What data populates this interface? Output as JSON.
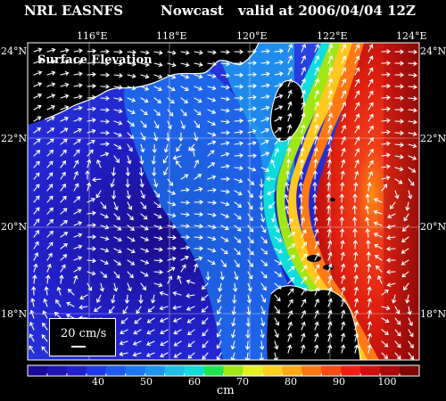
{
  "header": {
    "org": "NRL EASNFS",
    "product": "Nowcast",
    "valid": "valid at 2006/04/04 12Z"
  },
  "map": {
    "field_title": "Surface Elevation",
    "lon_labels": [
      "116°E",
      "118°E",
      "120°E",
      "122°E",
      "124°E"
    ],
    "lat_labels": [
      "24°N",
      "22°N",
      "20°N",
      "18°N"
    ],
    "scale_label": "20 cm/s"
  },
  "colorbar": {
    "unit": "cm",
    "range": [
      30,
      110
    ],
    "tick_labels": [
      "40",
      "50",
      "60",
      "70",
      "80",
      "90",
      "100"
    ],
    "colors": [
      "#1a0a9a",
      "#1e14b4",
      "#2222cc",
      "#1e3ae6",
      "#1e5af0",
      "#1e78f5",
      "#1e96f0",
      "#1ebee8",
      "#10dcdc",
      "#1ee650",
      "#a0e614",
      "#e6f01e",
      "#ffd21e",
      "#ffaa14",
      "#ff7814",
      "#ff4a14",
      "#f01e14",
      "#d20f0f",
      "#aa0a0a",
      "#820505"
    ]
  }
}
